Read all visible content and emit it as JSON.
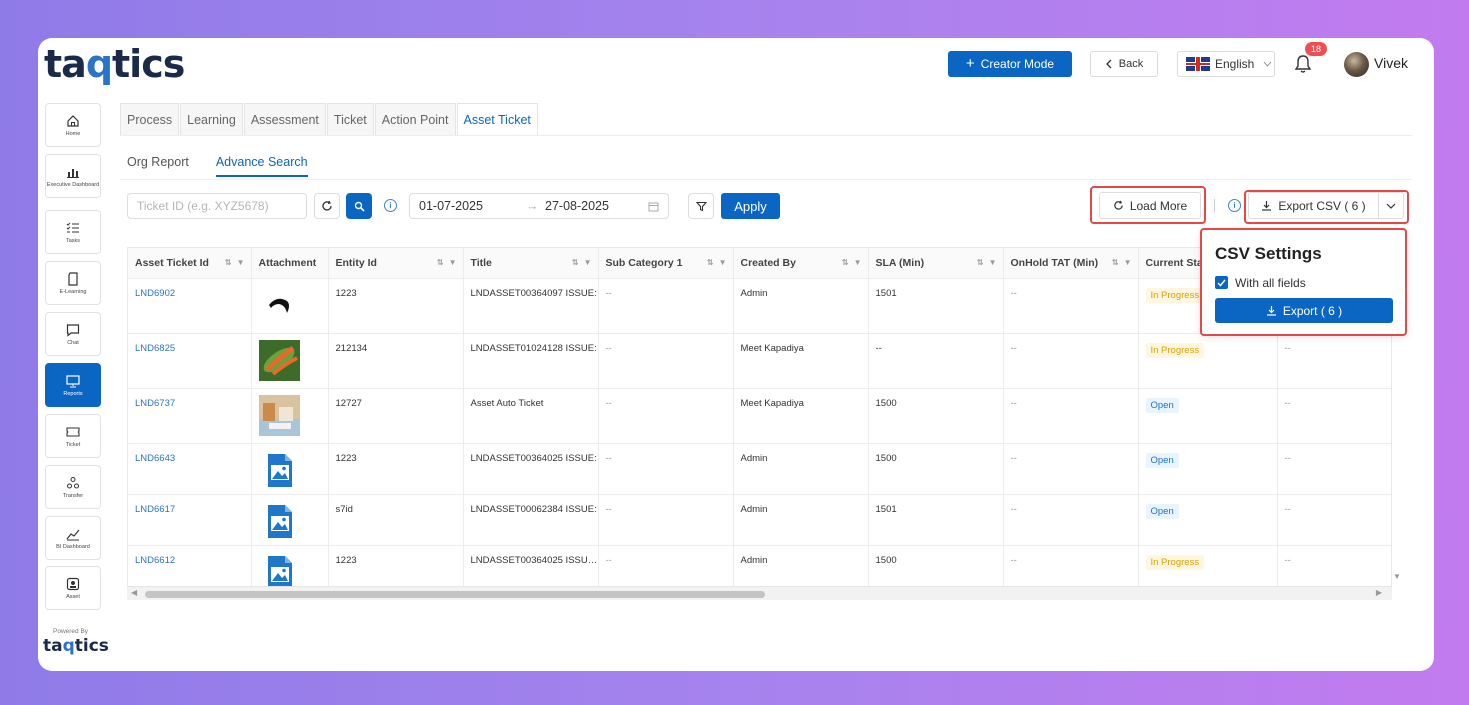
{
  "header": {
    "logo_left": "taq",
    "logo_q": "",
    "logo_full": "taqtics",
    "creator_mode": "Creator Mode",
    "back": "Back",
    "language": "English",
    "notifications": "18",
    "user": "Vivek"
  },
  "sidebar": {
    "items": [
      {
        "label": "Home",
        "icon": "home-icon"
      },
      {
        "label": "Executive Dashboard",
        "icon": "bar-chart-icon"
      },
      {
        "label": "Tasks",
        "icon": "checklist-icon"
      },
      {
        "label": "E-Learning",
        "icon": "book-icon"
      },
      {
        "label": "Chat",
        "icon": "chat-icon"
      },
      {
        "label": "Reports",
        "icon": "monitor-icon"
      },
      {
        "label": "Ticket",
        "icon": "ticket-icon"
      },
      {
        "label": "Transfer",
        "icon": "transfer-icon"
      },
      {
        "label": "BI Dashboard",
        "icon": "line-chart-icon"
      },
      {
        "label": "Asset",
        "icon": "asset-icon"
      }
    ],
    "powered_by": "Powered By",
    "footer_logo": "taqtics"
  },
  "tabs": [
    "Process",
    "Learning",
    "Assessment",
    "Ticket",
    "Action Point",
    "Asset Ticket"
  ],
  "subtabs": [
    "Org Report",
    "Advance Search"
  ],
  "filters": {
    "ticket_placeholder": "Ticket ID (e.g. XYZ5678)",
    "date_from": "01-07-2025",
    "date_to": "27-08-2025",
    "apply": "Apply",
    "load_more": "Load More",
    "export_csv": "Export CSV ( 6 )"
  },
  "csv_settings": {
    "title": "CSV Settings",
    "with_all_fields": "With all fields",
    "export": "Export ( 6 )"
  },
  "table": {
    "columns": [
      "Asset Ticket Id",
      "Attachment",
      "Entity Id",
      "Title",
      "Sub Category 1",
      "Created By",
      "SLA (Min)",
      "OnHold TAT (Min)",
      "Current Status",
      ""
    ],
    "rows": [
      {
        "id": "LND6902",
        "attachment": "bird",
        "entity": "1223",
        "title": "LNDASSET00364097 ISSUE:",
        "sub": "--",
        "created": "Admin",
        "sla": "1501",
        "onhold": "--",
        "status": "In Progress",
        "extra": ""
      },
      {
        "id": "LND6825",
        "attachment": "leaf",
        "entity": "212134",
        "title": "LNDASSET01024128 ISSUE:",
        "sub": "--",
        "created": "Meet Kapadiya",
        "sla": "--",
        "onhold": "--",
        "status": "In Progress",
        "extra": "--"
      },
      {
        "id": "LND6737",
        "attachment": "desk",
        "entity": "12727",
        "title": "Asset Auto Ticket",
        "sub": "--",
        "created": "Meet Kapadiya",
        "sla": "1500",
        "onhold": "--",
        "status": "Open",
        "extra": "--"
      },
      {
        "id": "LND6643",
        "attachment": "file",
        "entity": "1223",
        "title": "LNDASSET00364025 ISSUE:",
        "sub": "--",
        "created": "Admin",
        "sla": "1500",
        "onhold": "--",
        "status": "Open",
        "extra": "--"
      },
      {
        "id": "LND6617",
        "attachment": "file",
        "entity": "s7id",
        "title": "LNDASSET00062384 ISSUE:",
        "sub": "--",
        "created": "Admin",
        "sla": "1501",
        "onhold": "--",
        "status": "Open",
        "extra": "--"
      },
      {
        "id": "LND6612",
        "attachment": "file",
        "entity": "1223",
        "title": "LNDASSET00364025 ISSUE...",
        "sub": "--",
        "created": "Admin",
        "sla": "1500",
        "onhold": "--",
        "status": "In Progress",
        "extra": "--"
      }
    ]
  },
  "colors": {
    "primary": "#0a66c2",
    "highlight": "#e44848",
    "in_progress": "#d9a100",
    "open": "#1a73c7"
  }
}
